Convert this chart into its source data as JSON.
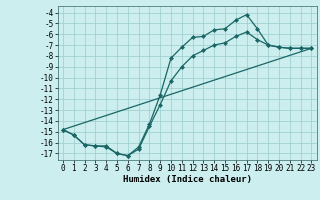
{
  "xlabel": "Humidex (Indice chaleur)",
  "background_color": "#cceeee",
  "grid_color": "#99cccc",
  "line_color": "#1a6666",
  "xlim": [
    -0.5,
    23.5
  ],
  "ylim": [
    -17.6,
    -3.4
  ],
  "x_ticks": [
    0,
    1,
    2,
    3,
    4,
    5,
    6,
    7,
    8,
    9,
    10,
    11,
    12,
    13,
    14,
    15,
    16,
    17,
    18,
    19,
    20,
    21,
    22,
    23
  ],
  "y_ticks": [
    -4,
    -5,
    -6,
    -7,
    -8,
    -9,
    -10,
    -11,
    -12,
    -13,
    -14,
    -15,
    -16,
    -17
  ],
  "line1_y": [
    -14.8,
    -15.3,
    -16.2,
    -16.3,
    -16.3,
    -17.0,
    -17.2,
    -16.4,
    -14.3,
    -11.6,
    -8.2,
    -7.2,
    -6.3,
    -6.2,
    -5.6,
    -5.5,
    -4.7,
    -4.2,
    -5.5,
    -7.0,
    -7.2,
    -7.3,
    -7.3,
    -7.3
  ],
  "line2_y": [
    -14.8,
    -15.3,
    -16.2,
    -16.3,
    -16.4,
    -17.0,
    -17.2,
    -16.6,
    -14.5,
    -12.5,
    -10.3,
    -9.0,
    -8.0,
    -7.5,
    -7.0,
    -6.8,
    -6.2,
    -5.8,
    -6.5,
    -7.0,
    -7.2,
    -7.3,
    -7.3,
    -7.3
  ],
  "line3_x": [
    0,
    23
  ],
  "line3_y": [
    -14.8,
    -7.3
  ],
  "marker_size": 2.5,
  "linewidth": 0.9,
  "tick_fontsize": 5.5,
  "xlabel_fontsize": 6.5
}
